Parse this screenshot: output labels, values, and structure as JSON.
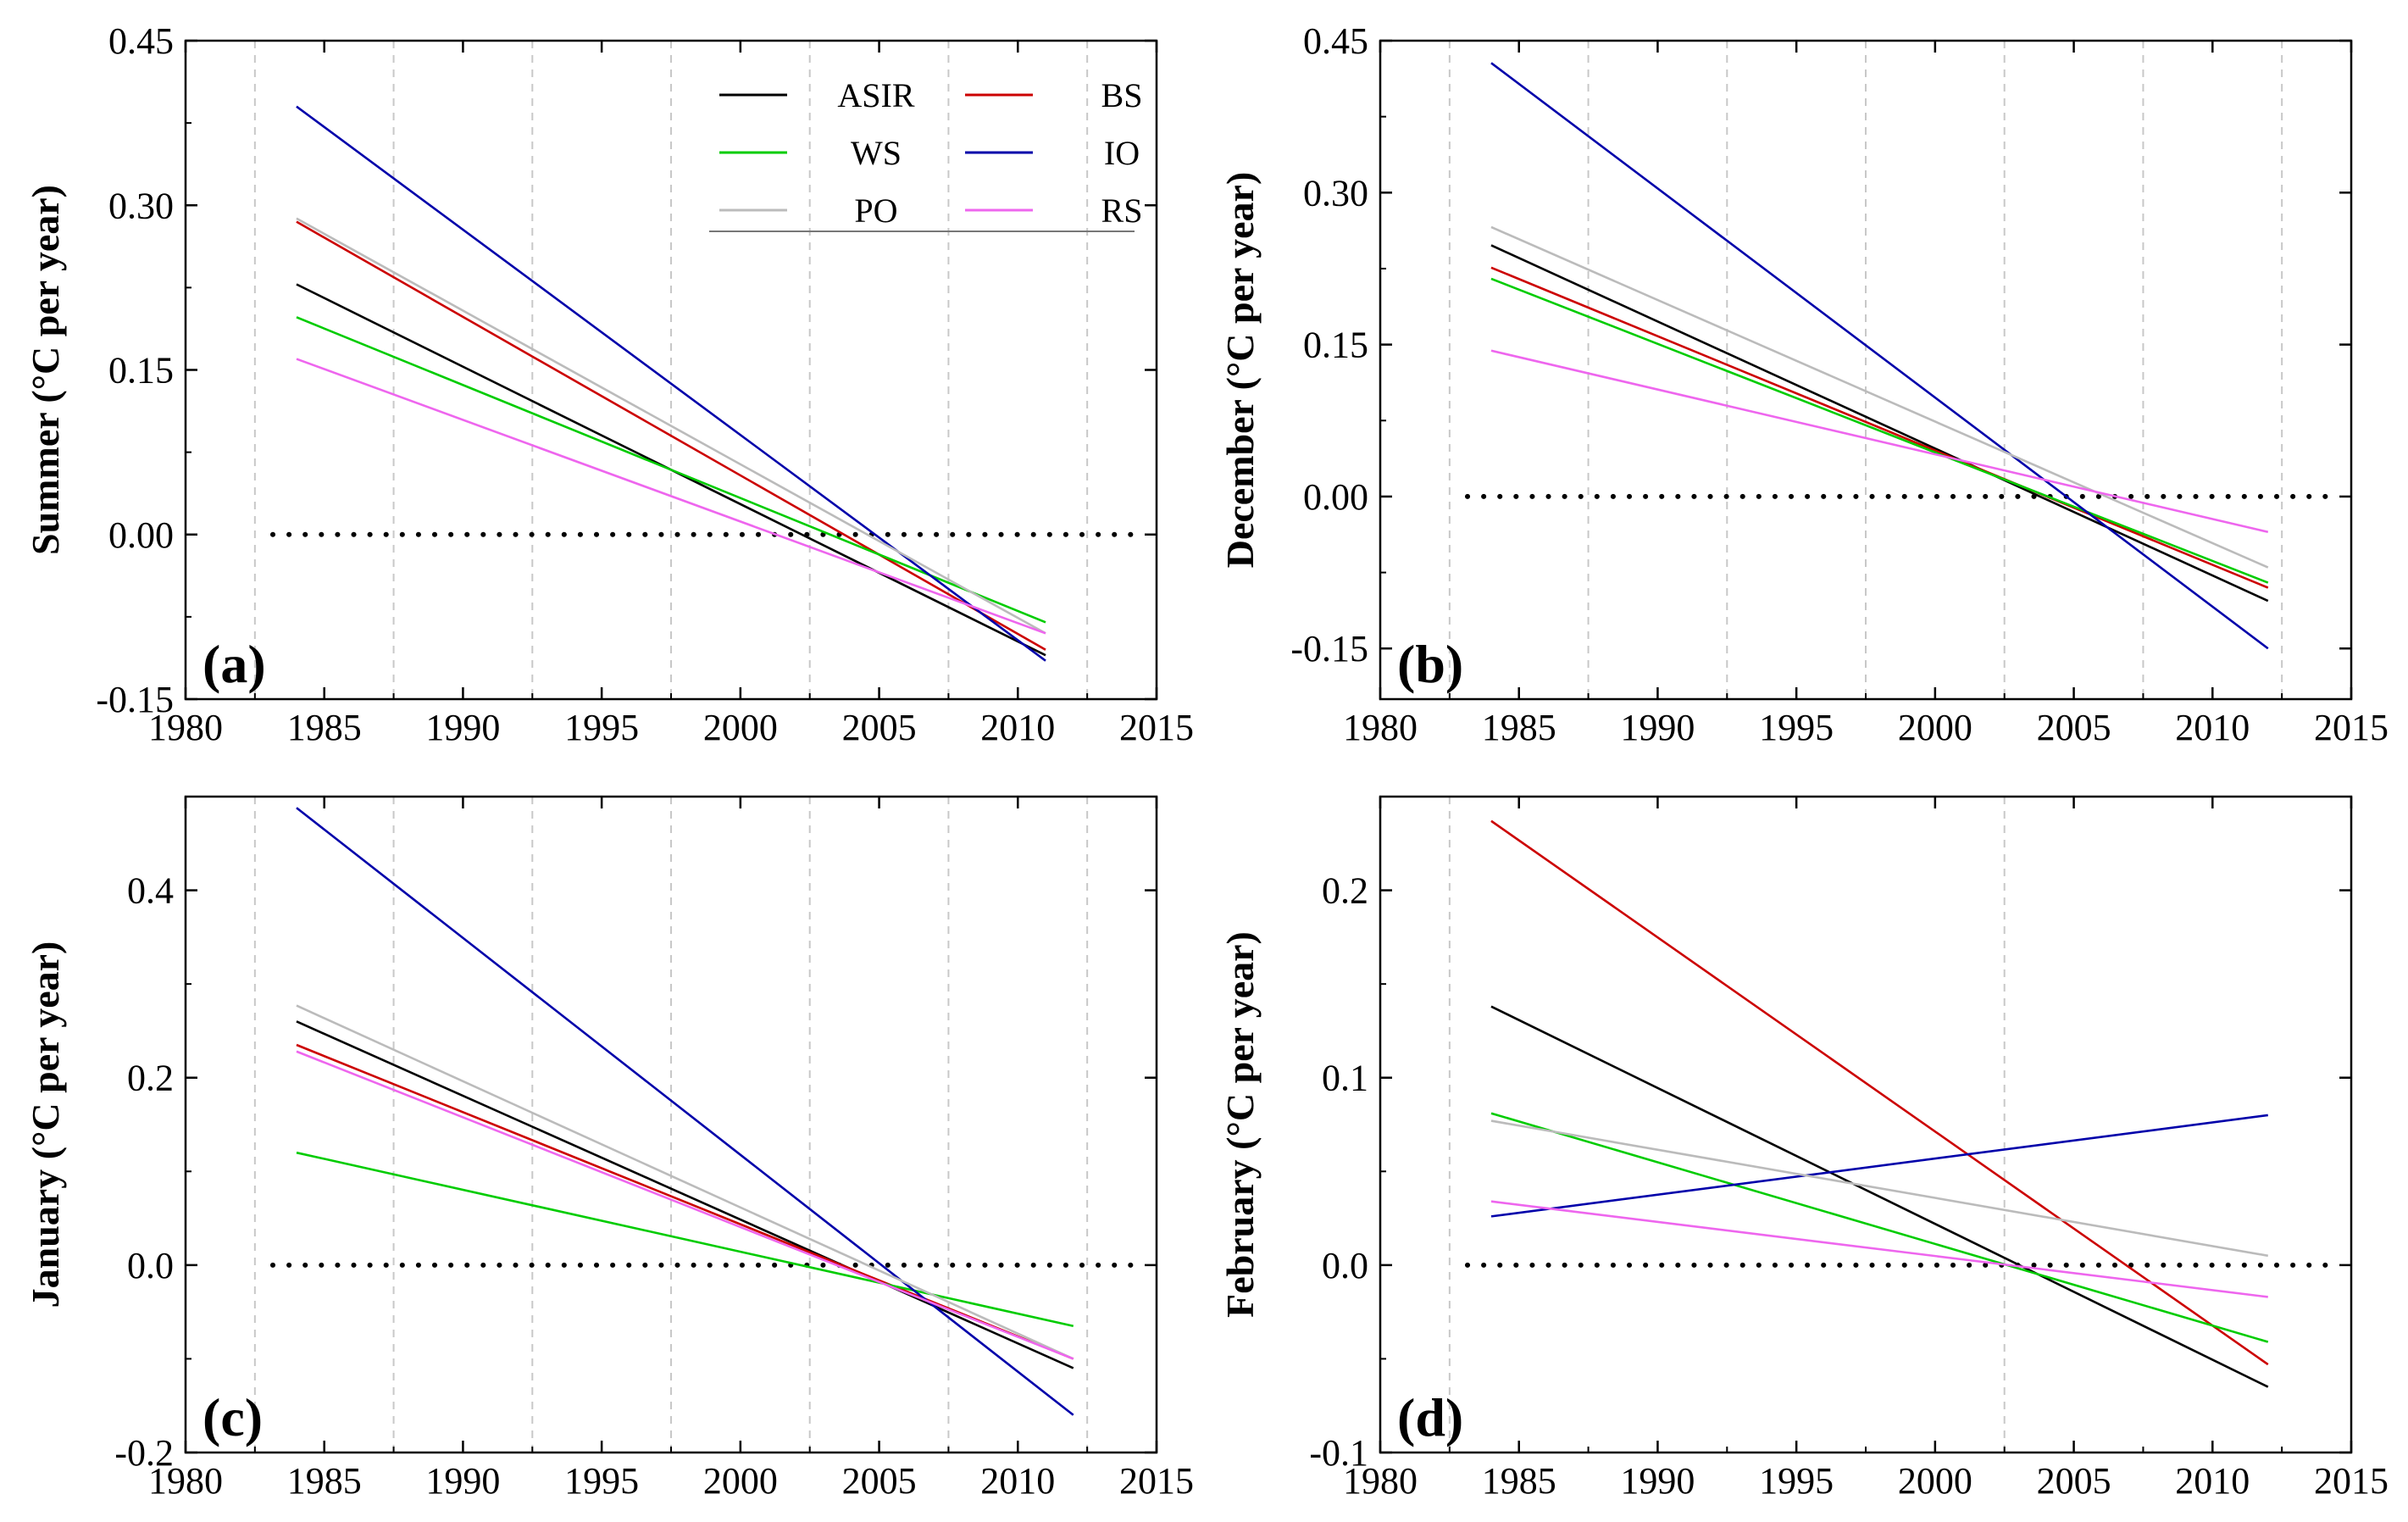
{
  "chart_data": [
    {
      "type": "line",
      "panel_label": "(a)",
      "ylabel": "Summer (°C per year)",
      "xlabel": "",
      "xlim": [
        1980,
        2015
      ],
      "ylim": [
        -0.15,
        0.45
      ],
      "xticks": [
        "1980",
        "1985",
        "1990",
        "1995",
        "2000",
        "2005",
        "2010",
        "2015"
      ],
      "yticks": [
        "-0.15",
        "0.00",
        "0.15",
        "0.30",
        "0.45"
      ],
      "ytick_values": [
        -0.15,
        0.0,
        0.15,
        0.3,
        0.45
      ],
      "grid_x": [
        1982.5,
        1987.5,
        1992.5,
        1997.5,
        2002.5,
        2007.5,
        2012.5
      ],
      "zero_line": true,
      "legend": {
        "placement": "top-right",
        "entries": [
          {
            "name": "ASIR",
            "color": "#000000"
          },
          {
            "name": "BS",
            "color": "#cc0000"
          },
          {
            "name": "WS",
            "color": "#00cc00"
          },
          {
            "name": "IO",
            "color": "#0000aa"
          },
          {
            "name": "PO",
            "color": "#bbbbbb"
          },
          {
            "name": "RS",
            "color": "#ee66ee"
          }
        ]
      },
      "series": [
        {
          "name": "ASIR",
          "color": "#000000",
          "x": [
            1984,
            2011
          ],
          "values": [
            0.228,
            -0.11
          ]
        },
        {
          "name": "BS",
          "color": "#cc0000",
          "x": [
            1984,
            2011
          ],
          "values": [
            0.285,
            -0.105
          ]
        },
        {
          "name": "WS",
          "color": "#00cc00",
          "x": [
            1984,
            2011
          ],
          "values": [
            0.198,
            -0.08
          ]
        },
        {
          "name": "IO",
          "color": "#0000aa",
          "x": [
            1984,
            2011
          ],
          "values": [
            0.39,
            -0.115
          ]
        },
        {
          "name": "PO",
          "color": "#bbbbbb",
          "x": [
            1984,
            2011
          ],
          "values": [
            0.288,
            -0.09
          ]
        },
        {
          "name": "RS",
          "color": "#ee66ee",
          "x": [
            1984,
            2011
          ],
          "values": [
            0.16,
            -0.09
          ]
        }
      ]
    },
    {
      "type": "line",
      "panel_label": "(b)",
      "ylabel": "December (°C per year)",
      "xlabel": "",
      "xlim": [
        1980,
        2015
      ],
      "ylim": [
        -0.2,
        0.45
      ],
      "xticks": [
        "1980",
        "1985",
        "1990",
        "1995",
        "2000",
        "2005",
        "2010",
        "2015"
      ],
      "yticks": [
        "-0.15",
        "0.00",
        "0.15",
        "0.30",
        "0.45"
      ],
      "ytick_values": [
        -0.15,
        0.0,
        0.15,
        0.3,
        0.45
      ],
      "grid_x": [
        1982.5,
        1987.5,
        1992.5,
        1997.5,
        2002.5,
        2007.5,
        2012.5
      ],
      "zero_line": true,
      "series": [
        {
          "name": "ASIR",
          "color": "#000000",
          "x": [
            1984,
            2012
          ],
          "values": [
            0.248,
            -0.103
          ]
        },
        {
          "name": "BS",
          "color": "#cc0000",
          "x": [
            1984,
            2012
          ],
          "values": [
            0.226,
            -0.09
          ]
        },
        {
          "name": "WS",
          "color": "#00cc00",
          "x": [
            1984,
            2012
          ],
          "values": [
            0.215,
            -0.085
          ]
        },
        {
          "name": "IO",
          "color": "#0000aa",
          "x": [
            1984,
            2012
          ],
          "values": [
            0.428,
            -0.15
          ]
        },
        {
          "name": "PO",
          "color": "#bbbbbb",
          "x": [
            1984,
            2012
          ],
          "values": [
            0.266,
            -0.07
          ]
        },
        {
          "name": "RS",
          "color": "#ee66ee",
          "x": [
            1984,
            2012
          ],
          "values": [
            0.144,
            -0.035
          ]
        }
      ]
    },
    {
      "type": "line",
      "panel_label": "(c)",
      "ylabel": "January (°C per year)",
      "xlabel": "",
      "xlim": [
        1980,
        2015
      ],
      "ylim": [
        -0.2,
        0.5
      ],
      "xticks": [
        "1980",
        "1985",
        "1990",
        "1995",
        "2000",
        "2005",
        "2010",
        "2015"
      ],
      "yticks": [
        "-0.2",
        "0.0",
        "0.2",
        "0.4"
      ],
      "ytick_values": [
        -0.2,
        0.0,
        0.2,
        0.4
      ],
      "grid_x": [
        1982.5,
        1987.5,
        1992.5,
        1997.5,
        2002.5,
        2007.5,
        2012.5
      ],
      "zero_line": true,
      "series": [
        {
          "name": "ASIR",
          "color": "#000000",
          "x": [
            1984,
            2012
          ],
          "values": [
            0.26,
            -0.11
          ]
        },
        {
          "name": "BS",
          "color": "#cc0000",
          "x": [
            1984,
            2012
          ],
          "values": [
            0.235,
            -0.1
          ]
        },
        {
          "name": "WS",
          "color": "#00cc00",
          "x": [
            1984,
            2012
          ],
          "values": [
            0.12,
            -0.065
          ]
        },
        {
          "name": "IO",
          "color": "#0000aa",
          "x": [
            1984,
            2012
          ],
          "values": [
            0.488,
            -0.16
          ]
        },
        {
          "name": "PO",
          "color": "#bbbbbb",
          "x": [
            1984,
            2012
          ],
          "values": [
            0.277,
            -0.1
          ]
        },
        {
          "name": "RS",
          "color": "#ee66ee",
          "x": [
            1984,
            2012
          ],
          "values": [
            0.228,
            -0.1
          ]
        }
      ]
    },
    {
      "type": "line",
      "panel_label": "(d)",
      "ylabel": "February (°C per year)",
      "xlabel": "",
      "xlim": [
        1980,
        2015
      ],
      "ylim": [
        -0.1,
        0.25
      ],
      "xticks": [
        "1980",
        "1985",
        "1990",
        "1995",
        "2000",
        "2005",
        "2010",
        "2015"
      ],
      "yticks": [
        "-0.1",
        "0.0",
        "0.1",
        "0.2"
      ],
      "ytick_values": [
        -0.1,
        0.0,
        0.1,
        0.2
      ],
      "grid_x": [
        1982.5,
        2002.5
      ],
      "zero_line": true,
      "series": [
        {
          "name": "ASIR",
          "color": "#000000",
          "x": [
            1984,
            2012
          ],
          "values": [
            0.138,
            -0.065
          ]
        },
        {
          "name": "BS",
          "color": "#cc0000",
          "x": [
            1984,
            2012
          ],
          "values": [
            0.237,
            -0.053
          ]
        },
        {
          "name": "WS",
          "color": "#00cc00",
          "x": [
            1984,
            2012
          ],
          "values": [
            0.081,
            -0.041
          ]
        },
        {
          "name": "IO",
          "color": "#0000aa",
          "x": [
            1984,
            2012
          ],
          "values": [
            0.026,
            0.08
          ]
        },
        {
          "name": "PO",
          "color": "#bbbbbb",
          "x": [
            1984,
            2012
          ],
          "values": [
            0.077,
            0.005
          ]
        },
        {
          "name": "RS",
          "color": "#ee66ee",
          "x": [
            1984,
            2012
          ],
          "values": [
            0.034,
            -0.017
          ]
        }
      ]
    }
  ]
}
